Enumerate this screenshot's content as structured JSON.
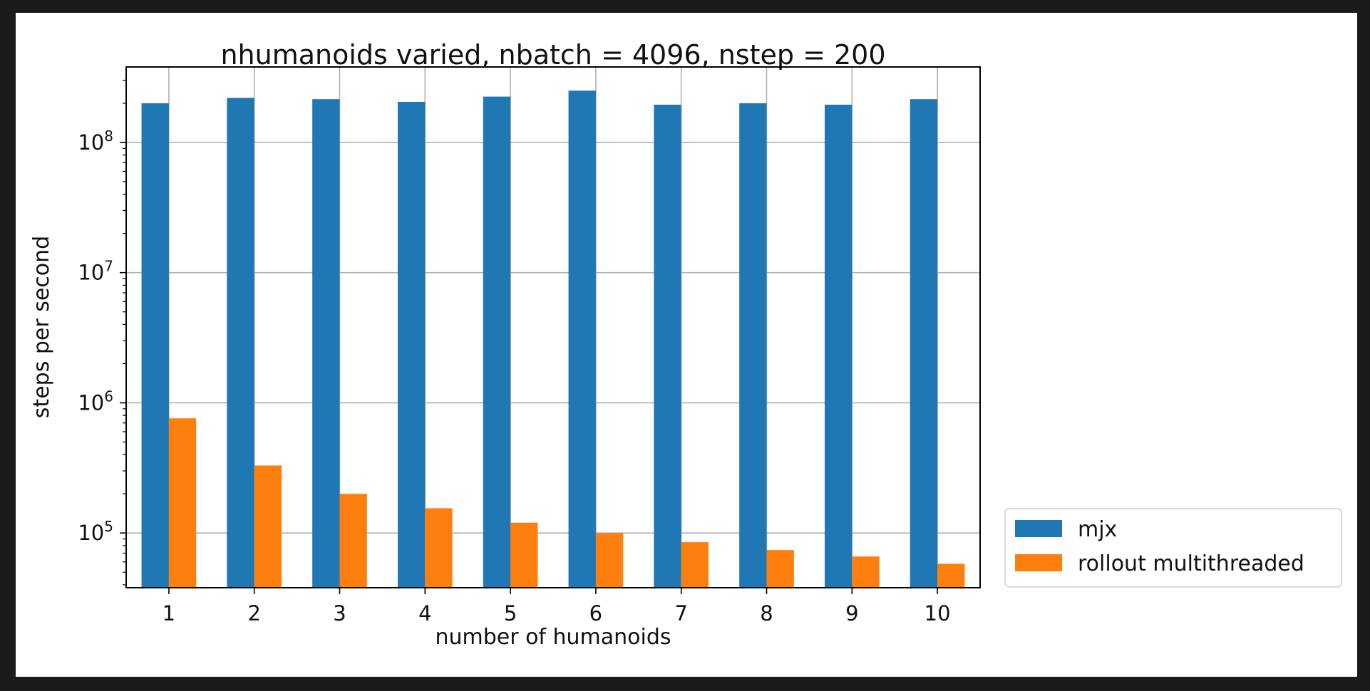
{
  "chart_data": {
    "type": "bar",
    "title": "nhumanoids varied, nbatch = 4096, nstep = 200",
    "xlabel": "number of humanoids",
    "ylabel": "steps per second",
    "yscale": "log",
    "ylim": [
      38000,
      380000000
    ],
    "categories": [
      "1",
      "2",
      "3",
      "4",
      "5",
      "6",
      "7",
      "8",
      "9",
      "10"
    ],
    "series": [
      {
        "name": "mjx",
        "color": "#1f77b4",
        "values": [
          200000000,
          220000000,
          215000000,
          205000000,
          225000000,
          250000000,
          195000000,
          200000000,
          195000000,
          215000000
        ]
      },
      {
        "name": "rollout multithreaded",
        "color": "#ff7f0e",
        "values": [
          760000,
          330000,
          200000,
          155000,
          120000,
          100000,
          85000,
          74000,
          66000,
          58000
        ]
      }
    ],
    "y_tick_labels": [
      {
        "base": "10",
        "exp": "5",
        "value": 100000
      },
      {
        "base": "10",
        "exp": "6",
        "value": 1000000
      },
      {
        "base": "10",
        "exp": "7",
        "value": 10000000
      },
      {
        "base": "10",
        "exp": "8",
        "value": 100000000
      }
    ],
    "grid": true,
    "legend_position": "outside-lower-right"
  }
}
